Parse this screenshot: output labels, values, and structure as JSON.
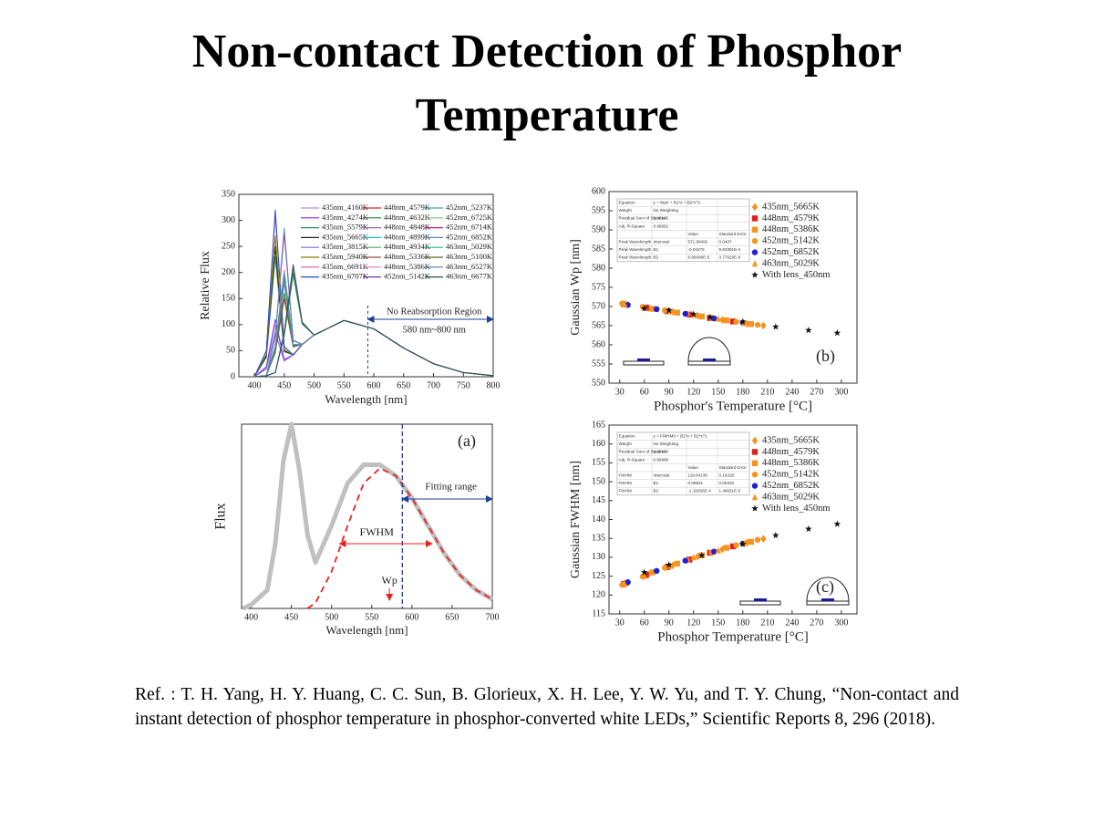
{
  "title": "Non-contact Detection of Phosphor Temperature",
  "reference": "Ref. : T. H. Yang, H. Y. Huang, C. C. Sun, B. Glorieux, X. H. Lee, Y. W. Yu, and T. Y. Chung, “Non-contact and instant detection of phosphor temperature in phosphor-converted white LEDs,” Scientific Reports 8, 296 (2018).",
  "chart_data": [
    {
      "type": "line",
      "x_label": "Wavelength [nm]",
      "y_label": "Relative Flux",
      "xlim": [
        374,
        800
      ],
      "xticks": [
        400,
        450,
        500,
        550,
        600,
        650,
        700,
        750,
        800
      ],
      "ylim": [
        0,
        350
      ],
      "yticks": [
        0,
        50,
        100,
        150,
        200,
        250,
        300,
        350
      ],
      "region_label": "No Reabsorption Region",
      "range_label": "580 nm~800 nm",
      "boundary_x": 590,
      "x": [
        400,
        420,
        435,
        450,
        465,
        480,
        500,
        550,
        600,
        650,
        700,
        750,
        800
      ],
      "series": [
        {
          "name": "435nm_4160K",
          "color": "#b48ee0",
          "values": [
            0,
            17,
            100,
            32,
            42,
            62,
            80,
            108,
            92,
            55,
            25,
            8,
            2
          ]
        },
        {
          "name": "435nm_4274K",
          "color": "#8a2be2",
          "values": [
            0,
            19,
            110,
            33,
            42,
            62,
            80,
            108,
            92,
            55,
            25,
            8,
            2
          ]
        },
        {
          "name": "435nm_5579K",
          "color": "#2e8b57",
          "values": [
            0,
            37,
            230,
            48,
            42,
            62,
            80,
            108,
            92,
            55,
            25,
            8,
            2
          ]
        },
        {
          "name": "435nm_5665K",
          "color": "#222222",
          "values": [
            0,
            40,
            250,
            50,
            42,
            62,
            80,
            108,
            92,
            55,
            25,
            8,
            2
          ]
        },
        {
          "name": "435nm_3815K",
          "color": "#7b68ee",
          "values": [
            0,
            15,
            85,
            30,
            42,
            62,
            80,
            108,
            92,
            55,
            25,
            8,
            2
          ]
        },
        {
          "name": "435nm_5940K",
          "color": "#808000",
          "values": [
            0,
            43,
            270,
            52,
            42,
            62,
            80,
            108,
            92,
            55,
            25,
            8,
            2
          ]
        },
        {
          "name": "435nm_6691K",
          "color": "#e05aa0",
          "values": [
            0,
            49,
            310,
            57,
            42,
            62,
            80,
            108,
            92,
            55,
            25,
            8,
            2
          ]
        },
        {
          "name": "435nm_6707K",
          "color": "#1f4fd6",
          "values": [
            0,
            50,
            320,
            58,
            42,
            62,
            80,
            108,
            92,
            55,
            25,
            8,
            2
          ]
        },
        {
          "name": "448nm_4579K",
          "color": "#d62728",
          "values": [
            0,
            2,
            46,
            150,
            57,
            62,
            80,
            108,
            92,
            55,
            25,
            8,
            2
          ]
        },
        {
          "name": "448nm_4632K",
          "color": "#2e7d32",
          "values": [
            0,
            2,
            48,
            160,
            58,
            62,
            80,
            108,
            92,
            55,
            25,
            8,
            2
          ]
        },
        {
          "name": "448nm_4848K",
          "color": "#9467bd",
          "values": [
            0,
            2,
            53,
            180,
            60,
            62,
            80,
            108,
            92,
            55,
            25,
            8,
            2
          ]
        },
        {
          "name": "448nm_4899K",
          "color": "#17becf",
          "values": [
            0,
            2,
            54,
            185,
            60,
            62,
            80,
            108,
            92,
            55,
            25,
            8,
            2
          ]
        },
        {
          "name": "448nm_4934K",
          "color": "#4caf50",
          "values": [
            0,
            2,
            56,
            190,
            61,
            62,
            80,
            108,
            92,
            55,
            25,
            8,
            2
          ]
        },
        {
          "name": "448nm_5336K",
          "color": "#8c564b",
          "values": [
            0,
            2,
            58,
            200,
            62,
            62,
            80,
            108,
            92,
            55,
            25,
            8,
            2
          ]
        },
        {
          "name": "448nm_5386K",
          "color": "#e377c2",
          "values": [
            0,
            2,
            59,
            205,
            62,
            62,
            80,
            108,
            92,
            55,
            25,
            8,
            2
          ]
        },
        {
          "name": "452nm_5142K",
          "color": "#6a3d9a",
          "values": [
            0,
            2,
            57,
            195,
            61,
            62,
            80,
            108,
            92,
            55,
            25,
            8,
            2
          ]
        },
        {
          "name": "452nm_5237K",
          "color": "#3fa7a7",
          "values": [
            0,
            2,
            58,
            200,
            62,
            62,
            80,
            108,
            92,
            55,
            25,
            8,
            2
          ]
        },
        {
          "name": "452nm_6725K",
          "color": "#7fbf7f",
          "values": [
            0,
            2,
            78,
            280,
            70,
            62,
            80,
            108,
            92,
            55,
            25,
            8,
            2
          ]
        },
        {
          "name": "452nm_6714K",
          "color": "#c71585",
          "values": [
            0,
            2,
            77,
            275,
            69,
            62,
            80,
            108,
            92,
            55,
            25,
            8,
            2
          ]
        },
        {
          "name": "452nm_6852K",
          "color": "#5b8db8",
          "values": [
            0,
            2,
            79,
            285,
            70,
            62,
            80,
            108,
            92,
            55,
            25,
            8,
            2
          ]
        },
        {
          "name": "463nm_5029K",
          "color": "#20b2aa",
          "values": [
            0,
            2,
            8,
            79,
            195,
            101,
            80,
            108,
            92,
            55,
            25,
            8,
            2
          ]
        },
        {
          "name": "463nm_5100K",
          "color": "#556b2f",
          "values": [
            0,
            2,
            8,
            80,
            200,
            102,
            80,
            108,
            92,
            55,
            25,
            8,
            2
          ]
        },
        {
          "name": "463nm_6527K",
          "color": "#4682b4",
          "values": [
            0,
            2,
            8,
            83,
            210,
            104,
            80,
            108,
            92,
            55,
            25,
            8,
            2
          ]
        },
        {
          "name": "463nm_6677K",
          "color": "#2f4f4f",
          "values": [
            0,
            2,
            8,
            85,
            215,
            105,
            80,
            108,
            92,
            55,
            25,
            8,
            2
          ]
        }
      ]
    },
    {
      "type": "line",
      "x_label": "Wavelength [nm]",
      "y_label": "Flux",
      "panel_label": "(a)",
      "xlim": [
        388,
        700
      ],
      "xticks": [
        400,
        450,
        500,
        550,
        600,
        650,
        700
      ],
      "ylim": [
        0,
        1
      ],
      "fit_label": "Fitting range",
      "fit_start": 588,
      "fwhm_label": "FWHM",
      "fwhm": [
        510,
        625
      ],
      "wp_label": "Wp",
      "wp": 572,
      "x": [
        390,
        400,
        420,
        430,
        440,
        450,
        460,
        470,
        480,
        500,
        520,
        540,
        560,
        580,
        600,
        620,
        640,
        660,
        680,
        700
      ],
      "series": [
        {
          "color": "#c0c0c0",
          "line_width": 5,
          "values": [
            0,
            0.02,
            0.1,
            0.35,
            0.8,
            1.0,
            0.75,
            0.4,
            0.25,
            0.45,
            0.68,
            0.78,
            0.78,
            0.72,
            0.6,
            0.45,
            0.3,
            0.18,
            0.1,
            0.05
          ]
        },
        {
          "color": "#e8231f",
          "dash": true,
          "values": [
            null,
            null,
            null,
            null,
            null,
            null,
            null,
            0,
            0.03,
            0.2,
            0.45,
            0.68,
            0.76,
            0.72,
            0.6,
            0.45,
            0.3,
            0.18,
            0.1,
            0.05
          ]
        }
      ]
    },
    {
      "type": "scatter",
      "x_label": "Phosphor's Temperature [°C]",
      "y_label": "Gaussian Wp [nm]",
      "panel_label": "(b)",
      "xlim": [
        17,
        319
      ],
      "xticks": [
        30,
        60,
        90,
        120,
        150,
        180,
        210,
        240,
        270,
        300
      ],
      "ylim": [
        550,
        600
      ],
      "yticks": [
        550,
        555,
        560,
        565,
        570,
        575,
        580,
        585,
        590,
        595,
        600
      ],
      "fit_table": {
        "stats": [
          [
            "Equation",
            "y = Wp0 + B1*x + B2*x^2"
          ],
          [
            "Weight",
            "No Weighting"
          ],
          [
            "Residual Sum of Squares",
            "0.00145"
          ],
          [
            "Adj. R-Square",
            "0.99652"
          ]
        ],
        "columns": [
          "Value",
          "Standard Error"
        ],
        "params": [
          [
            "Peak Wavelength",
            "Intercept",
            "571.99492",
            "0.0407"
          ],
          [
            "Peak Wavelength",
            "B1",
            "-0.04276",
            "9.83391E-4"
          ],
          [
            "Peak Wavelength",
            "B2",
            "6.90098E-5",
            "3.77919E-6"
          ]
        ]
      },
      "series": [
        {
          "name": "435nm_5665K",
          "color": "#f5901e",
          "marker": "diamond",
          "x": [
            35,
            65,
            95,
            125,
            155,
            185,
            205
          ],
          "values": [
            570.6,
            569.6,
            568.6,
            567.6,
            566.5,
            565.5,
            565.0
          ]
        },
        {
          "name": "448nm_4579K",
          "color": "#e0201b",
          "marker": "square",
          "x": [
            35,
            62,
            88,
            115,
            140,
            168
          ],
          "values": [
            570.6,
            569.7,
            568.8,
            567.9,
            567.0,
            566.1
          ]
        },
        {
          "name": "448nm_5386K",
          "color": "#f7941d",
          "marker": "square",
          "x": [
            38,
            70,
            100,
            130,
            160,
            190
          ],
          "values": [
            570.5,
            569.4,
            568.4,
            567.4,
            566.4,
            565.4
          ]
        },
        {
          "name": "452nm_5142K",
          "color": "#f7941d",
          "marker": "circle",
          "x": [
            33,
            58,
            85,
            112,
            142,
            172,
            198
          ],
          "values": [
            570.8,
            569.9,
            569.0,
            568.1,
            567.1,
            566.0,
            565.2
          ]
        },
        {
          "name": "452nm_6852K",
          "color": "#1f1fd6",
          "marker": "circle",
          "x": [
            40,
            75,
            110,
            145,
            180
          ],
          "values": [
            570.4,
            569.3,
            568.1,
            566.9,
            565.8
          ]
        },
        {
          "name": "463nm_5029K",
          "color": "#f7941d",
          "marker": "triangle",
          "x": [
            36,
            60,
            92,
            120,
            150,
            182
          ],
          "values": [
            570.6,
            569.8,
            568.7,
            567.8,
            566.8,
            565.7
          ]
        },
        {
          "name": "With lens_450nm",
          "color": "#111111",
          "marker": "star",
          "x": [
            60,
            90,
            120,
            140,
            180,
            220,
            260,
            295
          ],
          "values": [
            569.5,
            569.0,
            568.0,
            567.2,
            566.0,
            564.7,
            563.8,
            563.1
          ]
        }
      ]
    },
    {
      "type": "scatter",
      "x_label": "Phosphor Temperature [°C]",
      "y_label": "Gaussian FWHM [nm]",
      "panel_label": "(c)",
      "xlim": [
        17,
        319
      ],
      "xticks": [
        30,
        60,
        90,
        120,
        150,
        180,
        210,
        240,
        270,
        300
      ],
      "ylim": [
        115,
        165
      ],
      "yticks": [
        115,
        120,
        125,
        130,
        135,
        140,
        145,
        150,
        155,
        160,
        165
      ],
      "fit_table": {
        "stats": [
          [
            "Equation",
            "y = FWHM0 + B1*x + B2*x^2"
          ],
          [
            "Weight",
            "No Weighting"
          ],
          [
            "Residual Sum of Squares",
            "0.00195"
          ],
          [
            "Adj. R-Square",
            "0.99988"
          ]
        ],
        "columns": [
          "Value",
          "Standard Error"
        ],
        "params": [
          [
            "FWHM",
            "Intercept",
            "119.64136",
            "0.16228"
          ],
          [
            "FWHM",
            "B1",
            "0.09921",
            "0.00332"
          ],
          [
            "FWHM",
            "B2",
            "-1.18266E-4",
            "1.46631E-5"
          ]
        ]
      },
      "series": [
        {
          "name": "435nm_5665K",
          "color": "#f5901e",
          "marker": "diamond",
          "x": [
            35,
            65,
            95,
            125,
            155,
            185,
            205
          ],
          "values": [
            122.9,
            125.5,
            127.9,
            130.2,
            132.1,
            133.9,
            134.9
          ]
        },
        {
          "name": "448nm_4579K",
          "color": "#e0201b",
          "marker": "square",
          "x": [
            35,
            62,
            88,
            115,
            140,
            168
          ],
          "values": [
            122.9,
            125.3,
            127.4,
            129.4,
            131.2,
            132.9
          ]
        },
        {
          "name": "448nm_5386K",
          "color": "#f7941d",
          "marker": "square",
          "x": [
            38,
            70,
            100,
            130,
            160,
            190
          ],
          "values": [
            123.2,
            126.0,
            128.3,
            130.5,
            132.5,
            134.1
          ]
        },
        {
          "name": "452nm_5142K",
          "color": "#f7941d",
          "marker": "circle",
          "x": [
            33,
            58,
            85,
            112,
            142,
            172,
            198
          ],
          "values": [
            122.7,
            124.9,
            127.2,
            129.2,
            131.3,
            133.2,
            134.6
          ]
        },
        {
          "name": "452nm_6852K",
          "color": "#1f1fd6",
          "marker": "circle",
          "x": [
            40,
            75,
            110,
            145,
            180
          ],
          "values": [
            123.4,
            126.4,
            129.1,
            131.5,
            133.6
          ]
        },
        {
          "name": "463nm_5029K",
          "color": "#f7941d",
          "marker": "triangle",
          "x": [
            36,
            60,
            92,
            120,
            150,
            182
          ],
          "values": [
            123.0,
            125.1,
            127.7,
            130.0,
            131.8,
            133.7
          ]
        },
        {
          "name": "With lens_450nm",
          "color": "#111111",
          "marker": "star",
          "x": [
            60,
            90,
            130,
            180,
            220,
            260,
            295
          ],
          "values": [
            126.0,
            128.0,
            130.5,
            133.5,
            135.8,
            137.5,
            138.8
          ]
        }
      ]
    }
  ]
}
